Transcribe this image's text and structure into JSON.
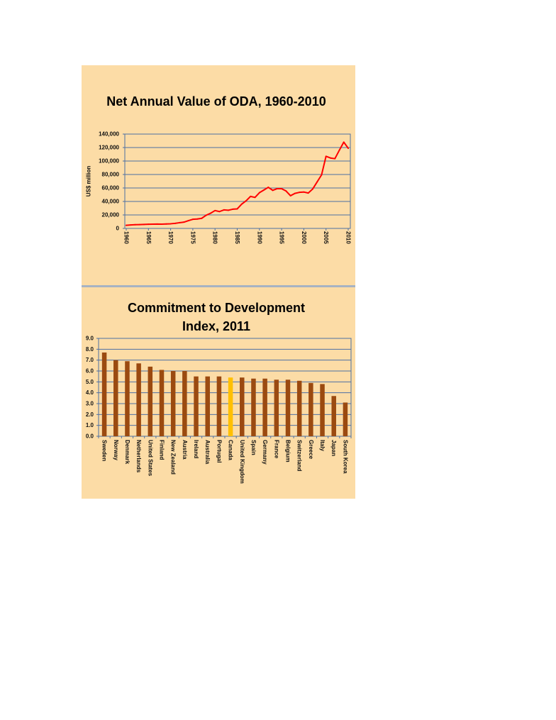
{
  "panel": {
    "background": "#FCDCA6",
    "separator_color": "#A7B3C3",
    "grid_color": "#4D6FA3"
  },
  "chart_data": [
    {
      "type": "line",
      "title": "Net Annual Value of ODA, 1960-2010",
      "ylabel": "US$ million",
      "x": [
        1960,
        1961,
        1962,
        1963,
        1964,
        1965,
        1966,
        1967,
        1968,
        1969,
        1970,
        1971,
        1972,
        1973,
        1974,
        1975,
        1976,
        1977,
        1978,
        1979,
        1980,
        1981,
        1982,
        1983,
        1984,
        1985,
        1986,
        1987,
        1988,
        1989,
        1990,
        1991,
        1992,
        1993,
        1994,
        1995,
        1996,
        1997,
        1998,
        1999,
        2000,
        2001,
        2002,
        2003,
        2004,
        2005,
        2006,
        2007,
        2008,
        2009,
        2010
      ],
      "series": [
        {
          "color": "#FF0000",
          "values": [
            4600,
            5100,
            5500,
            5700,
            5900,
            6200,
            6300,
            6500,
            6300,
            6600,
            6900,
            7500,
            8500,
            9300,
            11500,
            13500,
            14000,
            15000,
            19500,
            22500,
            26500,
            25000,
            27500,
            27000,
            28500,
            29000,
            36000,
            41000,
            47500,
            46000,
            53000,
            57000,
            61000,
            56500,
            59000,
            59000,
            55500,
            48500,
            52000,
            53500,
            54000,
            52500,
            58500,
            69000,
            79500,
            107000,
            104500,
            103500,
            116000,
            128000,
            119000
          ]
        }
      ],
      "ylim": [
        0,
        140000
      ],
      "yticks": [
        "0",
        "20,000",
        "40,000",
        "60,000",
        "80,000",
        "100,000",
        "120,000",
        "140,000"
      ],
      "xticks": [
        "1960",
        "1965",
        "1970",
        "1975",
        "1980",
        "1985",
        "1990",
        "1995",
        "2000",
        "2005",
        "2010"
      ],
      "grid": true,
      "legend": "none"
    },
    {
      "type": "bar",
      "title": "Commitment to Development Index, 2011",
      "categories": [
        "Sweden",
        "Norway",
        "Denmark",
        "Netherlands",
        "United States",
        "Finland",
        "New Zealand",
        "Austria",
        "Ireland",
        "Australia",
        "Portugal",
        "Canada",
        "United Kingdom",
        "Spain",
        "Germany",
        "France",
        "Belgium",
        "Switzerland",
        "Greece",
        "Italy",
        "Japan",
        "South Korea"
      ],
      "values": [
        7.7,
        7.0,
        6.9,
        6.7,
        6.4,
        6.1,
        6.0,
        6.0,
        5.5,
        5.5,
        5.5,
        5.4,
        5.4,
        5.3,
        5.3,
        5.2,
        5.2,
        5.1,
        4.9,
        4.8,
        3.7,
        3.1
      ],
      "colors": [
        "#9B4A10",
        "#9B4A10",
        "#9B4A10",
        "#9B4A10",
        "#9B4A10",
        "#9B4A10",
        "#9B4A10",
        "#9B4A10",
        "#9B4A10",
        "#9B4A10",
        "#9B4A10",
        "#FFC000",
        "#9B4A10",
        "#9B4A10",
        "#9B4A10",
        "#9B4A10",
        "#9B4A10",
        "#9B4A10",
        "#9B4A10",
        "#9B4A10",
        "#9B4A10",
        "#9B4A10"
      ],
      "ylim": [
        0,
        9
      ],
      "yticks": [
        "0.0",
        "1.0",
        "2.0",
        "3.0",
        "4.0",
        "5.0",
        "6.0",
        "7.0",
        "8.0",
        "9.0"
      ],
      "grid": true,
      "legend": "none"
    }
  ]
}
